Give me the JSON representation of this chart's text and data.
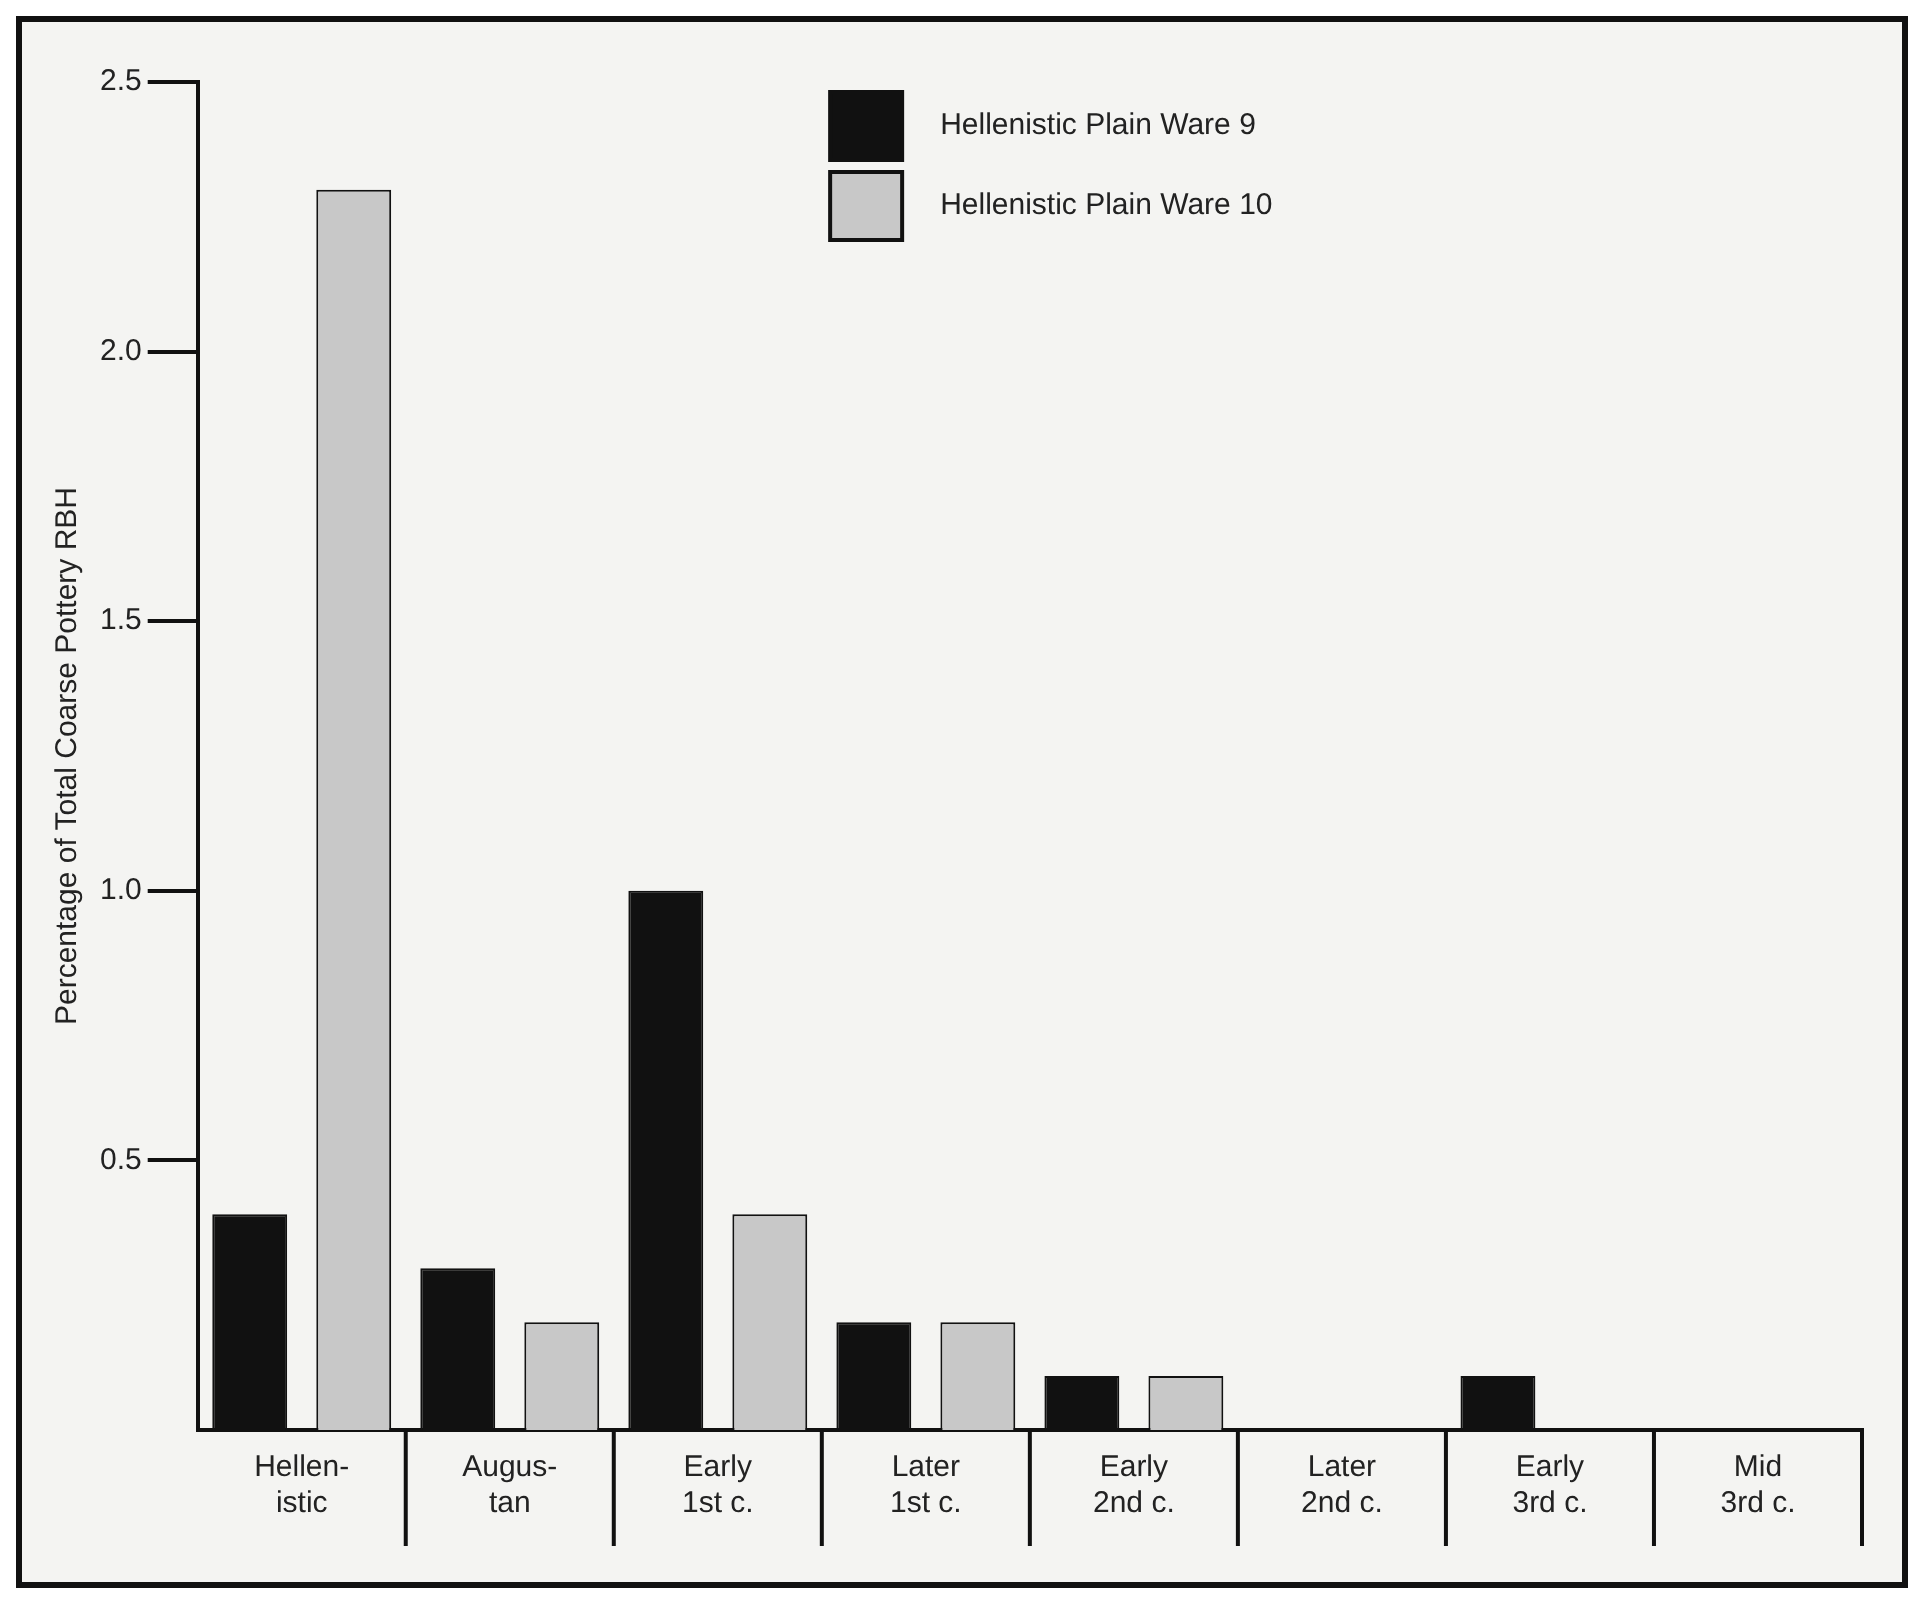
{
  "chart_data": {
    "type": "bar",
    "ylabel": "Percentage of Total Coarse Pottery RBH",
    "categories": [
      "Hellen-\nistic",
      "Augus-\ntan",
      "Early\n1st c.",
      "Later\n1st c.",
      "Early\n2nd c.",
      "Later\n2nd c.",
      "Early\n3rd c.",
      "Mid\n3rd c."
    ],
    "series": [
      {
        "name": "Hellenistic Plain Ware 9",
        "color": "#111111",
        "values": [
          0.4,
          0.3,
          1.0,
          0.2,
          0.1,
          null,
          0.1,
          null
        ]
      },
      {
        "name": "Hellenistic Plain Ware 10",
        "color": "#c8c8c8",
        "values": [
          2.3,
          0.2,
          0.4,
          0.2,
          0.1,
          null,
          null,
          null
        ]
      }
    ],
    "ylim": [
      0,
      2.5
    ],
    "yticks": [
      0.5,
      {
        "value": 1,
        "label": "1.0"
      },
      1.5,
      {
        "value": 2,
        "label": "2.0"
      },
      2.5
    ],
    "grid": false,
    "legend": "top right"
  }
}
